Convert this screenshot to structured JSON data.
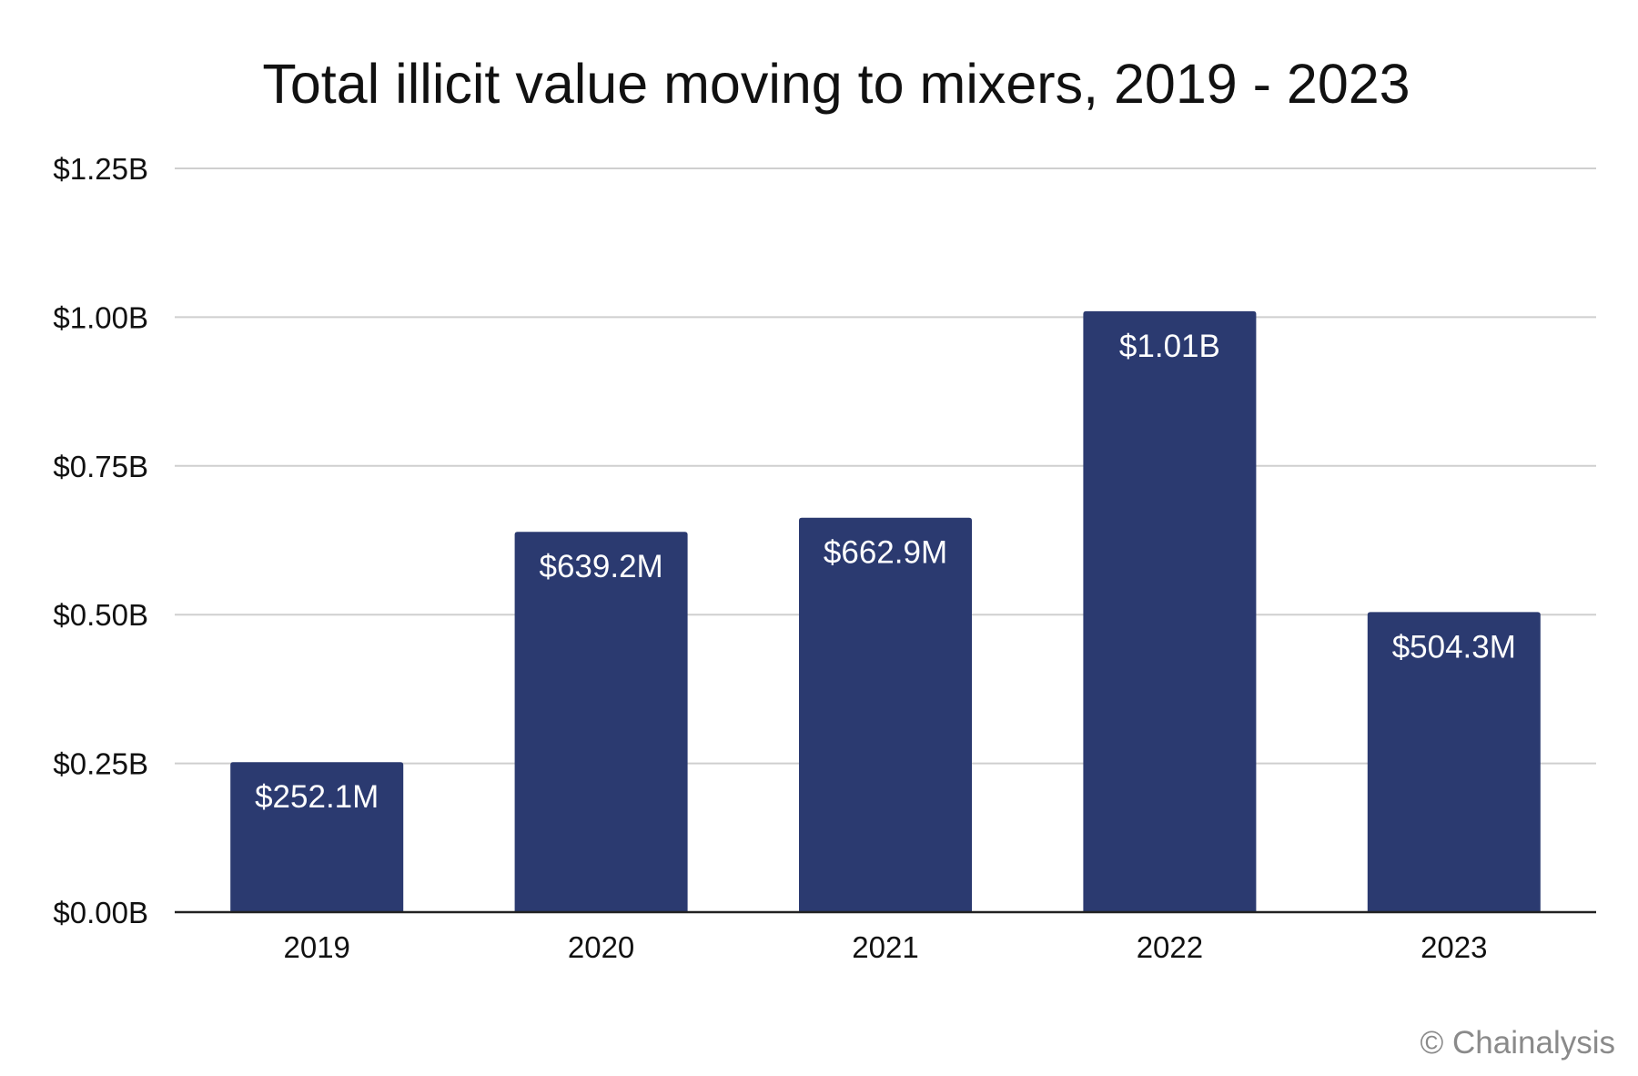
{
  "chart_data": {
    "type": "bar",
    "title": "Total illicit value moving to mixers, 2019 - 2023",
    "categories": [
      "2019",
      "2020",
      "2021",
      "2022",
      "2023"
    ],
    "values": [
      0.2521,
      0.6392,
      0.6629,
      1.01,
      0.5043
    ],
    "value_units": "billions USD",
    "data_labels": [
      "$252.1M",
      "$639.2M",
      "$662.9M",
      "$1.01B",
      "$504.3M"
    ],
    "y_ticks": [
      {
        "value": 0,
        "label": "$0.00B"
      },
      {
        "value": 0.25,
        "label": "$0.25B"
      },
      {
        "value": 0.5,
        "label": "$0.50B"
      },
      {
        "value": 0.75,
        "label": "$0.75B"
      },
      {
        "value": 1.0,
        "label": "$1.00B"
      },
      {
        "value": 1.25,
        "label": "$1.25B"
      }
    ],
    "ylim": [
      0,
      1.25
    ],
    "xlabel": "",
    "ylabel": "",
    "grid": true,
    "legend": "none",
    "bar_color": "#2b3a70",
    "source_credit": "© Chainalysis"
  }
}
